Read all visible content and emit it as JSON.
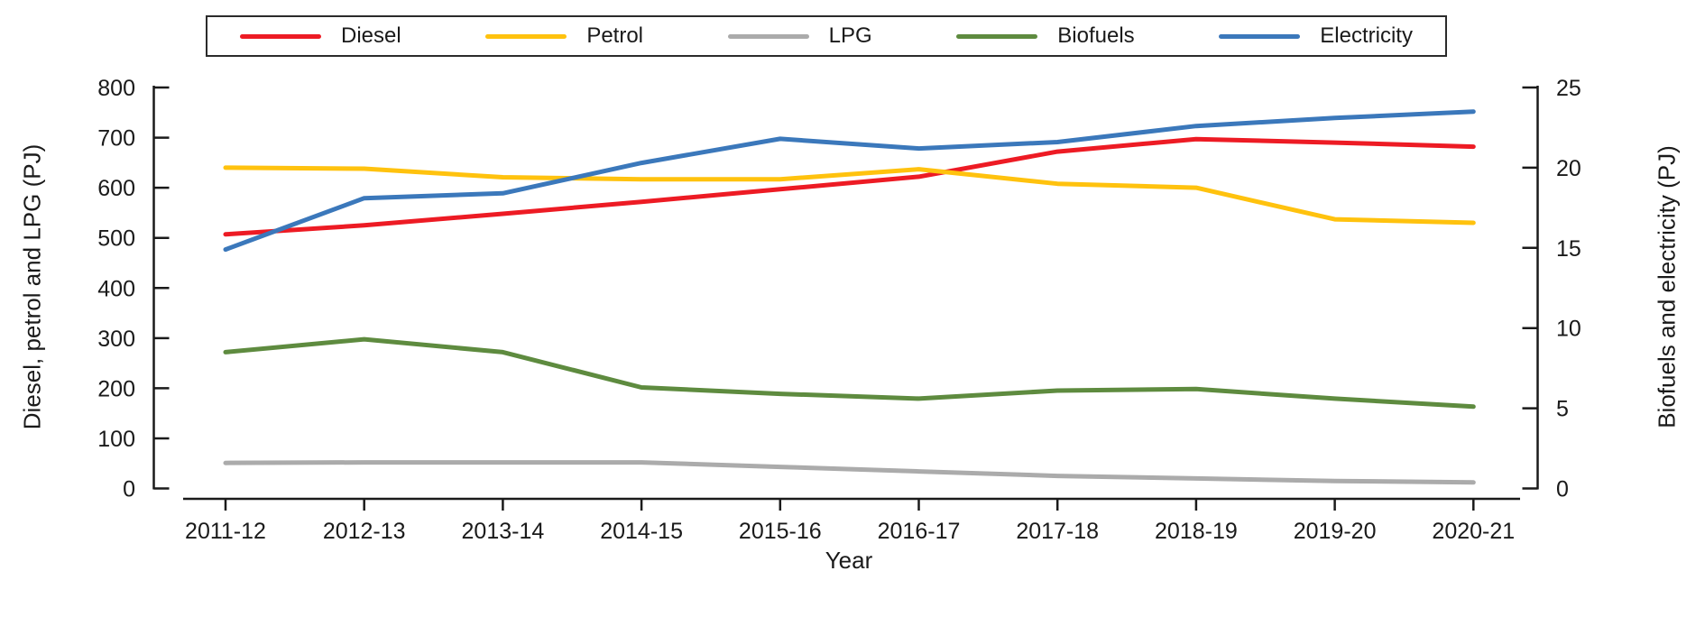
{
  "chart_data": {
    "type": "line",
    "title": "",
    "xlabel": "Year",
    "ylabel_left": "Diesel, petrol and LPG (PJ)",
    "ylabel_right": "Biofuels and electricity (PJ)",
    "categories": [
      "2011-12",
      "2012-13",
      "2013-14",
      "2014-15",
      "2015-16",
      "2016-17",
      "2017-18",
      "2018-19",
      "2019-20",
      "2020-21"
    ],
    "left_axis": {
      "min": 0,
      "max": 800,
      "step": 100
    },
    "right_axis": {
      "min": 0,
      "max": 25,
      "step": 5
    },
    "grid": false,
    "legend_position": "top",
    "series": [
      {
        "name": "Diesel",
        "axis": "left",
        "color": "#ED1B24",
        "values": [
          507,
          525,
          548,
          572,
          597,
          622,
          672,
          697,
          690,
          682
        ]
      },
      {
        "name": "Petrol",
        "axis": "left",
        "color": "#FFC20E",
        "values": [
          640,
          638,
          621,
          617,
          617,
          637,
          608,
          600,
          537,
          530
        ]
      },
      {
        "name": "LPG",
        "axis": "left",
        "color": "#ABABAB",
        "values": [
          51,
          52,
          52,
          52,
          43,
          34,
          25,
          20,
          15,
          12
        ]
      },
      {
        "name": "Biofuels",
        "axis": "right",
        "color": "#5E8B3F",
        "values": [
          8.5,
          9.3,
          8.5,
          6.3,
          5.9,
          5.6,
          6.1,
          6.2,
          5.6,
          5.1
        ]
      },
      {
        "name": "Electricity",
        "axis": "right",
        "color": "#3B78BB",
        "values": [
          14.9,
          18.1,
          18.4,
          20.3,
          21.8,
          21.2,
          21.6,
          22.6,
          23.1,
          23.5
        ]
      }
    ]
  }
}
